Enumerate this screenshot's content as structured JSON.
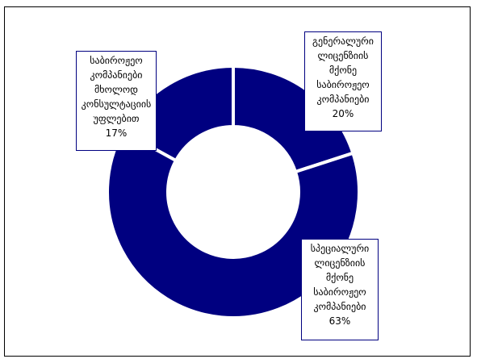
{
  "chart_data": {
    "type": "pie",
    "variant": "donut",
    "slices": [
      {
        "label": "გენერალური ლიცენზიის მქონე საბიროჟეო კომპანიები",
        "value": 20,
        "value_label": "20%"
      },
      {
        "label": "სპეციალური ლიცენზიის მქონე საბიროჟეო კომპანიები",
        "value": 63,
        "value_label": "63%"
      },
      {
        "label": "საბიროჟეო კომპანიები მხოლოდ კონსულტაციის უფლებით",
        "value": 17,
        "value_label": "17%"
      }
    ],
    "legend": "none",
    "colors": {
      "fill": "#000080",
      "separator": "#ffffff",
      "label_border": "#000080"
    }
  },
  "labels": {
    "slice_0": "გენერალური\nლიცენზიის\nმქონე\nსაბიროჟეო\nკომპანიები\n20%",
    "slice_1": "სპეციალური\nლიცენზიის\nმქონე\nსაბიროჟეო\nკომპანიები\n63%",
    "slice_2": "საბიროჟეო\nკომპანიები\nმხოლოდ\nკონსულტაციის\nუფლებით\n17%"
  }
}
